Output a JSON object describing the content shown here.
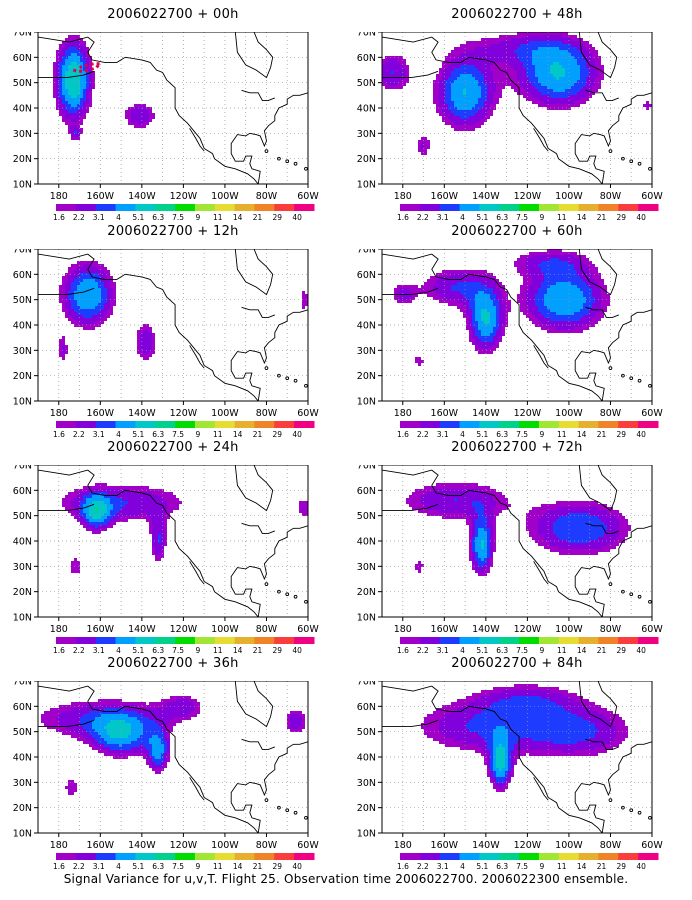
{
  "caption": "Signal Variance for u,v,T. Flight 25. Observation time 2006022700. 2006022300 ensemble.",
  "colors": {
    "palette": [
      "#a000c8",
      "#8200dc",
      "#1e3cff",
      "#00a0ff",
      "#00c8c8",
      "#00d28c",
      "#00dc00",
      "#a0e632",
      "#e6dc32",
      "#e6af2d",
      "#f08228",
      "#fa3c3c",
      "#f00082"
    ],
    "background": "#ffffff",
    "grid": "#999999",
    "coastline": "#000000",
    "flight_track": "#e0004b"
  },
  "colorbar_labels": [
    "1.6",
    "2.2",
    "3.1",
    "4",
    "5.1",
    "6.3",
    "7.5",
    "9",
    "11",
    "14",
    "21",
    "29",
    "40"
  ],
  "chart_data": [
    {
      "type": "heatmap",
      "title": "2006022700 + 00h",
      "x_ticks": [
        "180",
        "160W",
        "140W",
        "120W",
        "100W",
        "80W",
        "60W"
      ],
      "y_ticks": [
        "10N",
        "20N",
        "30N",
        "40N",
        "50N",
        "60N",
        "70N"
      ],
      "xlim": [
        -190,
        -60
      ],
      "ylim": [
        10,
        70
      ],
      "grid": true,
      "blobs": [
        {
          "lon": -173,
          "lat": 51,
          "sx": 6,
          "sy": 11,
          "peak": 6.3
        },
        {
          "lon": -172,
          "lat": 30,
          "sx": 2,
          "sy": 2,
          "peak": 2.2
        },
        {
          "lon": -141,
          "lat": 37,
          "sx": 6,
          "sy": 4,
          "peak": 3.1
        }
      ],
      "flight_track": [
        [
          -173,
          55
        ],
        [
          -171,
          54.5
        ],
        [
          -168,
          54.5
        ],
        [
          -165,
          55
        ],
        [
          -162,
          56
        ],
        [
          -160,
          57.5
        ],
        [
          -163,
          57.5
        ],
        [
          -166,
          57
        ],
        [
          -170,
          56
        ]
      ]
    },
    {
      "type": "heatmap",
      "title": "2006022700 + 48h",
      "x_ticks": [
        "180",
        "160W",
        "140W",
        "120W",
        "100W",
        "80W",
        "60W"
      ],
      "y_ticks": [
        "10N",
        "20N",
        "30N",
        "40N",
        "50N",
        "60N",
        "70N"
      ],
      "xlim": [
        -190,
        -60
      ],
      "ylim": [
        10,
        70
      ],
      "grid": true,
      "blobs": [
        {
          "lon": -185,
          "lat": 54,
          "sx": 7,
          "sy": 6,
          "peak": 3.1
        },
        {
          "lon": -150,
          "lat": 46,
          "sx": 10,
          "sy": 10,
          "peak": 5.1
        },
        {
          "lon": -105,
          "lat": 53,
          "sx": 14,
          "sy": 9,
          "peak": 5.1
        },
        {
          "lon": -170,
          "lat": 25,
          "sx": 3,
          "sy": 4,
          "peak": 2.2
        },
        {
          "lon": -123,
          "lat": 64,
          "sx": 20,
          "sy": 5,
          "peak": 2.2
        },
        {
          "lon": -62,
          "lat": 41,
          "sx": 2,
          "sy": 2,
          "peak": 2.2
        }
      ]
    },
    {
      "type": "heatmap",
      "title": "2006022700 + 12h",
      "x_ticks": [
        "180",
        "160W",
        "140W",
        "120W",
        "100W",
        "80W",
        "60W"
      ],
      "y_ticks": [
        "10N",
        "20N",
        "30N",
        "40N",
        "50N",
        "60N",
        "70N"
      ],
      "xlim": [
        -190,
        -60
      ],
      "ylim": [
        10,
        70
      ],
      "grid": true,
      "blobs": [
        {
          "lon": -166,
          "lat": 52,
          "sx": 9,
          "sy": 9,
          "peak": 5.1
        },
        {
          "lon": -178,
          "lat": 30,
          "sx": 2,
          "sy": 5,
          "peak": 2.2
        },
        {
          "lon": -138,
          "lat": 33,
          "sx": 4,
          "sy": 6,
          "peak": 3.1
        },
        {
          "lon": -62,
          "lat": 50,
          "sx": 2,
          "sy": 4,
          "peak": 2.2
        }
      ]
    },
    {
      "type": "heatmap",
      "title": "2006022700 + 60h",
      "x_ticks": [
        "180",
        "160W",
        "140W",
        "120W",
        "100W",
        "80W",
        "60W"
      ],
      "y_ticks": [
        "10N",
        "20N",
        "30N",
        "40N",
        "50N",
        "60N",
        "70N"
      ],
      "xlim": [
        -190,
        -60
      ],
      "ylim": [
        10,
        70
      ],
      "grid": true,
      "blobs": [
        {
          "lon": -155,
          "lat": 55,
          "sx": 12,
          "sy": 6,
          "peak": 3.1
        },
        {
          "lon": -140,
          "lat": 42,
          "sx": 6,
          "sy": 9,
          "peak": 5.1
        },
        {
          "lon": -102,
          "lat": 50,
          "sx": 14,
          "sy": 9,
          "peak": 5.1
        },
        {
          "lon": -172,
          "lat": 26,
          "sx": 2,
          "sy": 2,
          "peak": 2.2
        },
        {
          "lon": -180,
          "lat": 52,
          "sx": 5,
          "sy": 4,
          "peak": 2.2
        },
        {
          "lon": -110,
          "lat": 65,
          "sx": 15,
          "sy": 4,
          "peak": 2.2
        }
      ]
    },
    {
      "type": "heatmap",
      "title": "2006022700 + 24h",
      "x_ticks": [
        "180",
        "160W",
        "140W",
        "120W",
        "100W",
        "80W",
        "60W"
      ],
      "y_ticks": [
        "10N",
        "20N",
        "30N",
        "40N",
        "50N",
        "60N",
        "70N"
      ],
      "xlim": [
        -190,
        -60
      ],
      "ylim": [
        10,
        70
      ],
      "grid": true,
      "blobs": [
        {
          "lon": -162,
          "lat": 51,
          "sx": 5,
          "sy": 5,
          "peak": 4
        },
        {
          "lon": -150,
          "lat": 55,
          "sx": 25,
          "sy": 6,
          "peak": 3.1
        },
        {
          "lon": -132,
          "lat": 40,
          "sx": 3,
          "sy": 7,
          "peak": 3.1
        },
        {
          "lon": -172,
          "lat": 30,
          "sx": 3,
          "sy": 4,
          "peak": 2.2
        },
        {
          "lon": -62,
          "lat": 53,
          "sx": 3,
          "sy": 4,
          "peak": 2.2
        }
      ]
    },
    {
      "type": "heatmap",
      "title": "2006022700 + 72h",
      "x_ticks": [
        "180",
        "160W",
        "140W",
        "120W",
        "100W",
        "80W",
        "60W"
      ],
      "y_ticks": [
        "10N",
        "20N",
        "30N",
        "40N",
        "50N",
        "60N",
        "70N"
      ],
      "xlim": [
        -190,
        -60
      ],
      "ylim": [
        10,
        70
      ],
      "grid": true,
      "blobs": [
        {
          "lon": -155,
          "lat": 56,
          "sx": 20,
          "sy": 6,
          "peak": 3.1
        },
        {
          "lon": -142,
          "lat": 38,
          "sx": 4,
          "sy": 8,
          "peak": 5.1
        },
        {
          "lon": -95,
          "lat": 45,
          "sx": 18,
          "sy": 8,
          "peak": 4
        },
        {
          "lon": -172,
          "lat": 30,
          "sx": 2,
          "sy": 3,
          "peak": 2.2
        }
      ]
    },
    {
      "type": "heatmap",
      "title": "2006022700 + 36h",
      "x_ticks": [
        "180",
        "160W",
        "140W",
        "120W",
        "100W",
        "80W",
        "60W"
      ],
      "y_ticks": [
        "10N",
        "20N",
        "30N",
        "40N",
        "50N",
        "60N",
        "70N"
      ],
      "xlim": [
        -190,
        -60
      ],
      "ylim": [
        10,
        70
      ],
      "grid": true,
      "blobs": [
        {
          "lon": -150,
          "lat": 48,
          "sx": 10,
          "sy": 6,
          "peak": 4
        },
        {
          "lon": -160,
          "lat": 55,
          "sx": 25,
          "sy": 6,
          "peak": 3.1
        },
        {
          "lon": -132,
          "lat": 42,
          "sx": 4,
          "sy": 6,
          "peak": 4
        },
        {
          "lon": -174,
          "lat": 28,
          "sx": 3,
          "sy": 4,
          "peak": 2.2
        },
        {
          "lon": -66,
          "lat": 54,
          "sx": 4,
          "sy": 4,
          "peak": 3.1
        },
        {
          "lon": -120,
          "lat": 60,
          "sx": 8,
          "sy": 4,
          "peak": 2.2
        }
      ]
    },
    {
      "type": "heatmap",
      "title": "2006022700 + 84h",
      "x_ticks": [
        "180",
        "160W",
        "140W",
        "120W",
        "100W",
        "80W",
        "60W"
      ],
      "y_ticks": [
        "10N",
        "20N",
        "30N",
        "40N",
        "50N",
        "60N",
        "70N"
      ],
      "xlim": [
        -190,
        -60
      ],
      "ylim": [
        10,
        70
      ],
      "grid": true,
      "blobs": [
        {
          "lon": -133,
          "lat": 37,
          "sx": 4,
          "sy": 7,
          "peak": 5.1
        },
        {
          "lon": -142,
          "lat": 52,
          "sx": 25,
          "sy": 8,
          "peak": 3.1
        },
        {
          "lon": -95,
          "lat": 50,
          "sx": 20,
          "sy": 8,
          "peak": 3.1
        },
        {
          "lon": -120,
          "lat": 63,
          "sx": 18,
          "sy": 5,
          "peak": 2.2
        }
      ]
    }
  ]
}
